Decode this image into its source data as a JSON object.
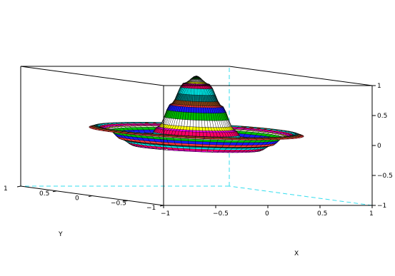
{
  "chart_data": {
    "type": "surface3d",
    "description_function": "z = sin(4.5*r)/(4.5*r) style damped radial wave (sombrero)",
    "x_range": [
      -1,
      1
    ],
    "y_range": [
      -1,
      1
    ],
    "z_range": [
      -1,
      1
    ],
    "xlabel": "X",
    "ylabel": "Y",
    "zlabel": "",
    "x_ticks": [
      "−1",
      "−0.5",
      "0",
      "0.5",
      "1"
    ],
    "y_ticks": [
      "−1",
      "−0.5",
      "0",
      "0.5",
      "1"
    ],
    "z_ticks": [
      "−1",
      "−0.5",
      "0",
      "0.5",
      "1"
    ],
    "surface": {
      "profile_r": [
        0.0,
        0.1,
        0.2,
        0.3,
        0.4,
        0.5,
        0.6,
        0.7,
        0.8,
        0.85
      ],
      "profile_z": [
        1.0,
        0.87,
        0.52,
        0.13,
        -0.13,
        -0.2,
        -0.1,
        0.05,
        0.1,
        0.07
      ],
      "band_colors": [
        "#1a1aff",
        "#00c000",
        "#ffffff",
        "#ffff00",
        "#ff00ff",
        "#ff0066",
        "#00ffff",
        "#008080",
        "#8b4513",
        "#ff3b3b"
      ]
    },
    "grid": false,
    "box": true
  }
}
